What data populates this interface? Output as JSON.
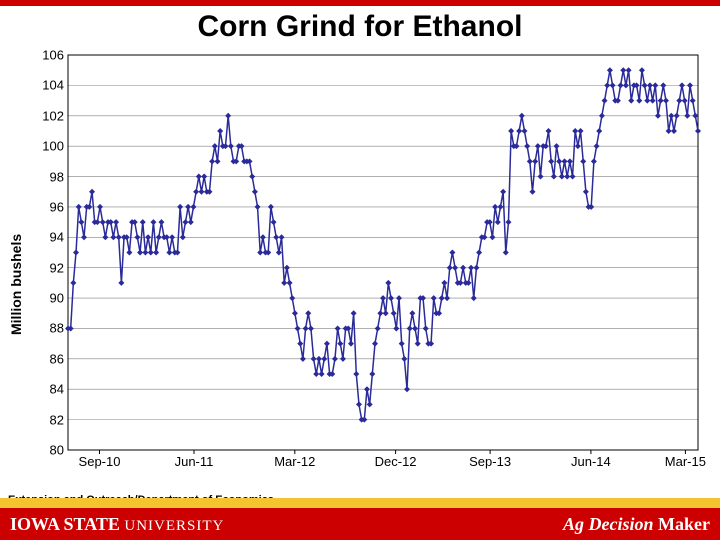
{
  "title": "Corn Grind for Ethanol",
  "footer": {
    "logo_main": "IOWA STATE",
    "logo_sub": "UNIVERSITY",
    "department": "Extension and Outreach/Department of Economics",
    "brand_a": "Ag",
    "brand_b": "Decision",
    "brand_c": "Maker"
  },
  "chart": {
    "type": "line",
    "ylabel": "Million bushels",
    "ylim": [
      80,
      106
    ],
    "ytick_step": 2,
    "yticks": [
      80,
      82,
      84,
      86,
      88,
      90,
      92,
      94,
      96,
      98,
      100,
      102,
      104,
      106
    ],
    "xticks": [
      "Sep-10",
      "Jun-11",
      "Mar-12",
      "Dec-12",
      "Sep-13",
      "Jun-14",
      "Mar-15"
    ],
    "xtick_positions_pct": [
      5,
      20,
      36,
      52,
      67,
      83,
      98
    ],
    "line_color": "#2a2a9a",
    "line_width": 1.5,
    "marker": "diamond",
    "marker_size": 6,
    "marker_color": "#2a2a9a",
    "grid_color": "#808080",
    "axis_color": "#000000",
    "background_color": "#ffffff",
    "accent_color": "#cc0000",
    "gold_color": "#f4c430",
    "values": [
      88,
      88,
      91,
      93,
      96,
      95,
      94,
      96,
      96,
      97,
      95,
      95,
      96,
      95,
      94,
      95,
      95,
      94,
      95,
      94,
      91,
      94,
      94,
      93,
      95,
      95,
      94,
      93,
      95,
      93,
      94,
      93,
      95,
      93,
      94,
      95,
      94,
      94,
      93,
      94,
      93,
      93,
      96,
      94,
      95,
      96,
      95,
      96,
      97,
      98,
      97,
      98,
      97,
      97,
      99,
      100,
      99,
      101,
      100,
      100,
      102,
      100,
      99,
      99,
      100,
      100,
      99,
      99,
      99,
      98,
      97,
      96,
      93,
      94,
      93,
      93,
      96,
      95,
      94,
      93,
      94,
      91,
      92,
      91,
      90,
      89,
      88,
      87,
      86,
      88,
      89,
      88,
      86,
      85,
      86,
      85,
      86,
      87,
      85,
      85,
      86,
      88,
      87,
      86,
      88,
      88,
      87,
      89,
      85,
      83,
      82,
      82,
      84,
      83,
      85,
      87,
      88,
      89,
      90,
      89,
      91,
      90,
      89,
      88,
      90,
      87,
      86,
      84,
      88,
      89,
      88,
      87,
      90,
      90,
      88,
      87,
      87,
      90,
      89,
      89,
      90,
      91,
      90,
      92,
      93,
      92,
      91,
      91,
      92,
      91,
      91,
      92,
      90,
      92,
      93,
      94,
      94,
      95,
      95,
      94,
      96,
      95,
      96,
      97,
      93,
      95,
      101,
      100,
      100,
      101,
      102,
      101,
      100,
      99,
      97,
      99,
      100,
      98,
      100,
      100,
      101,
      99,
      98,
      100,
      99,
      98,
      99,
      98,
      99,
      98,
      101,
      100,
      101,
      99,
      97,
      96,
      96,
      99,
      100,
      101,
      102,
      103,
      104,
      105,
      104,
      103,
      103,
      104,
      105,
      104,
      105,
      103,
      104,
      104,
      103,
      105,
      104,
      103,
      104,
      103,
      104,
      102,
      103,
      104,
      103,
      101,
      102,
      101,
      102,
      103,
      104,
      103,
      102,
      104,
      103,
      102,
      101
    ]
  }
}
